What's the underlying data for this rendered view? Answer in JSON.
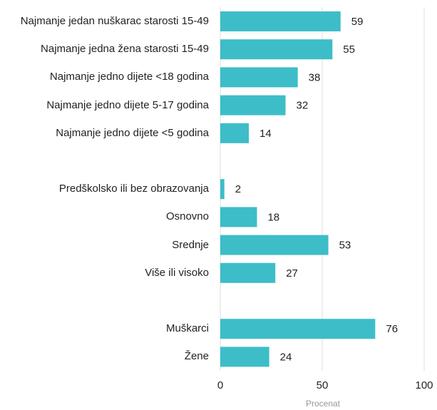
{
  "chart_data": {
    "type": "barh",
    "categories": [
      "Najmanje jedan nuškarac starosti 15-49",
      "Najmanje jedna žena starosti 15-49",
      "Najmanje jedno dijete <18 godina",
      "Najmanje jedno dijete 5-17 godina",
      "Najmanje jedno dijete <5 godina",
      null,
      "Predškolsko ili bez obrazovanja",
      "Osnovno",
      "Srednje",
      "Više ili visoko",
      null,
      "Muškarci",
      "Žene"
    ],
    "values": [
      59,
      55,
      38,
      32,
      14,
      null,
      2,
      18,
      53,
      27,
      null,
      76,
      24
    ],
    "color": "#3dbdc8",
    "xlabel": "Procenat",
    "xlim": [
      0,
      100
    ],
    "xticks": [
      0,
      50,
      100
    ],
    "grid": true
  }
}
